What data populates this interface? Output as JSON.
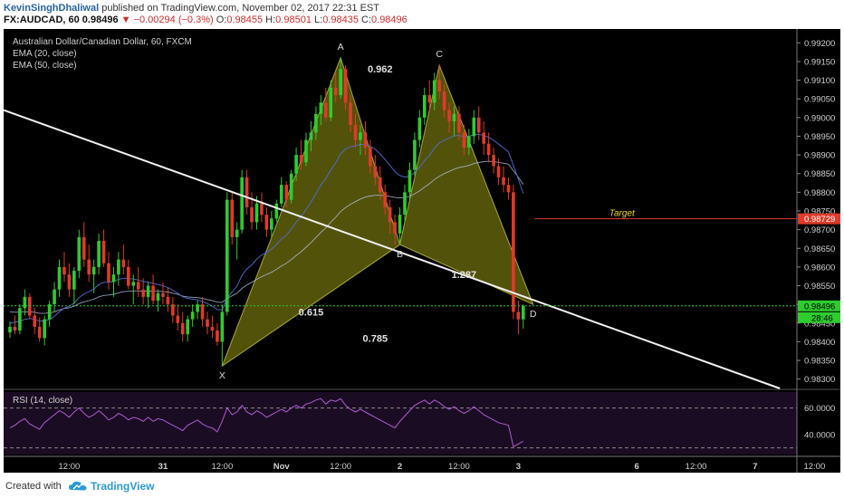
{
  "header": {
    "author": "KevinSinghDhaliwal",
    "published_text": "published on TradingView.com, November 02, 2017 22:31 EST",
    "symbol": "FX:AUDCAD, 60",
    "last": "0.98496",
    "down_arrow": "▼",
    "change": "−0.00294 (−0.3%)",
    "o_label": "O:",
    "o": "0.98455",
    "h_label": "H:",
    "h": "0.98501",
    "l_label": "L:",
    "l": "0.98435",
    "c_label": "C:",
    "c": "0.98496"
  },
  "legend": {
    "title": "Australian Dollar/Canadian Dollar, 60, FXCM",
    "ema20": "EMA (20, close)",
    "ema50": "EMA (50, close)"
  },
  "rsi_label": "RSI (14, close)",
  "footer": {
    "created_with": "Created with",
    "brand": "TradingView"
  },
  "chart_data": {
    "type": "candlestick",
    "price_axis": [
      "0.99200",
      "0.99150",
      "0.99100",
      "0.99050",
      "0.99000",
      "0.98950",
      "0.98900",
      "0.98850",
      "0.98800",
      "0.98750",
      "0.98700",
      "0.98650",
      "0.98600",
      "0.98550",
      "0.98500",
      "0.98450",
      "0.98400",
      "0.98350",
      "0.98300"
    ],
    "ylim": [
      0.98275,
      0.99225
    ],
    "rsi_axis": [
      "60.0000",
      "40.0000"
    ],
    "rsi_ylim": [
      25,
      72
    ],
    "time_axis": [
      {
        "label": "12:00",
        "x": 12
      },
      {
        "label": "31",
        "x": 31
      },
      {
        "label": "12:00",
        "x": 43
      },
      {
        "label": "Nov",
        "x": 55
      },
      {
        "label": "12:00",
        "x": 67
      },
      {
        "label": "2",
        "x": 79
      },
      {
        "label": "12:00",
        "x": 91
      },
      {
        "label": "3",
        "x": 103
      },
      {
        "label": "6",
        "x": 127
      },
      {
        "label": "12:00",
        "x": 139
      },
      {
        "label": "7",
        "x": 151
      },
      {
        "label": "12:00",
        "x": 163
      }
    ],
    "last_price": "0.98496",
    "countdown": "28:46",
    "target_price": "0.98729",
    "target_label": "Target",
    "pattern_points": [
      {
        "label": "X",
        "x": 43,
        "price": 0.98335
      },
      {
        "label": "A",
        "x": 67,
        "price": 0.9916
      },
      {
        "label": "B",
        "x": 79,
        "price": 0.9866
      },
      {
        "label": "C",
        "x": 87,
        "price": 0.9914
      },
      {
        "label": "D",
        "x": 106,
        "price": 0.985
      }
    ],
    "ratios": [
      {
        "text": "0.962",
        "x": 75,
        "price": 0.9913
      },
      {
        "text": "1.287",
        "x": 92,
        "price": 0.9858
      },
      {
        "text": "0.615",
        "x": 61,
        "price": 0.9848
      },
      {
        "text": "0.785",
        "x": 74,
        "price": 0.9841
      }
    ],
    "trendline": [
      {
        "x": 0,
        "price": 0.9902
      },
      {
        "x": 156,
        "price": 0.98275
      }
    ],
    "candles": [
      [
        0.98425,
        0.98455,
        0.9841,
        0.9844
      ],
      [
        0.9844,
        0.9847,
        0.9842,
        0.9843
      ],
      [
        0.9843,
        0.985,
        0.9842,
        0.9849
      ],
      [
        0.9849,
        0.9854,
        0.9847,
        0.9852
      ],
      [
        0.9852,
        0.9853,
        0.9846,
        0.9847
      ],
      [
        0.9847,
        0.9849,
        0.9842,
        0.9844
      ],
      [
        0.9844,
        0.98465,
        0.984,
        0.9841
      ],
      [
        0.9841,
        0.9847,
        0.9839,
        0.9846
      ],
      [
        0.9846,
        0.9851,
        0.9844,
        0.985
      ],
      [
        0.985,
        0.9856,
        0.9848,
        0.9854
      ],
      [
        0.9854,
        0.9862,
        0.9852,
        0.986
      ],
      [
        0.986,
        0.9864,
        0.9856,
        0.9858
      ],
      [
        0.9858,
        0.9861,
        0.9852,
        0.9854
      ],
      [
        0.9854,
        0.986,
        0.985,
        0.9859
      ],
      [
        0.9859,
        0.987,
        0.9857,
        0.9868
      ],
      [
        0.9868,
        0.9872,
        0.986,
        0.9862
      ],
      [
        0.9862,
        0.9866,
        0.9856,
        0.9858
      ],
      [
        0.9858,
        0.9862,
        0.9853,
        0.986
      ],
      [
        0.986,
        0.9869,
        0.9858,
        0.9867
      ],
      [
        0.9867,
        0.987,
        0.986,
        0.9861
      ],
      [
        0.9861,
        0.9864,
        0.9854,
        0.9856
      ],
      [
        0.9856,
        0.986,
        0.9852,
        0.9858
      ],
      [
        0.9858,
        0.9864,
        0.9855,
        0.9862
      ],
      [
        0.9862,
        0.9866,
        0.9858,
        0.986
      ],
      [
        0.986,
        0.9862,
        0.9854,
        0.9855
      ],
      [
        0.9855,
        0.9858,
        0.985,
        0.9856
      ],
      [
        0.9856,
        0.986,
        0.9852,
        0.9854
      ],
      [
        0.9854,
        0.9857,
        0.985,
        0.9852
      ],
      [
        0.9852,
        0.9856,
        0.9849,
        0.9855
      ],
      [
        0.9855,
        0.9858,
        0.985,
        0.9851
      ],
      [
        0.9851,
        0.9854,
        0.9848,
        0.9853
      ],
      [
        0.9853,
        0.9856,
        0.985,
        0.9852
      ],
      [
        0.9852,
        0.98545,
        0.9848,
        0.985
      ],
      [
        0.985,
        0.9852,
        0.9845,
        0.9847
      ],
      [
        0.9847,
        0.985,
        0.9843,
        0.9845
      ],
      [
        0.9845,
        0.9848,
        0.984,
        0.9842
      ],
      [
        0.9842,
        0.9847,
        0.984,
        0.9846
      ],
      [
        0.9846,
        0.985,
        0.9844,
        0.9848
      ],
      [
        0.9848,
        0.9851,
        0.9846,
        0.985
      ],
      [
        0.985,
        0.9852,
        0.9844,
        0.9846
      ],
      [
        0.9846,
        0.9848,
        0.9842,
        0.9844
      ],
      [
        0.9844,
        0.9847,
        0.9841,
        0.9843
      ],
      [
        0.9843,
        0.9845,
        0.9839,
        0.984
      ],
      [
        0.984,
        0.985,
        0.98335,
        0.9848
      ],
      [
        0.9848,
        0.988,
        0.9847,
        0.9878
      ],
      [
        0.9878,
        0.988,
        0.9866,
        0.9868
      ],
      [
        0.9868,
        0.9872,
        0.9862,
        0.987
      ],
      [
        0.987,
        0.9886,
        0.9869,
        0.9884
      ],
      [
        0.9884,
        0.9886,
        0.9874,
        0.9876
      ],
      [
        0.9876,
        0.988,
        0.987,
        0.9872
      ],
      [
        0.9872,
        0.9879,
        0.987,
        0.9877
      ],
      [
        0.9877,
        0.988,
        0.9872,
        0.9874
      ],
      [
        0.9874,
        0.9876,
        0.9868,
        0.987
      ],
      [
        0.987,
        0.9875,
        0.9868,
        0.9873
      ],
      [
        0.9873,
        0.9878,
        0.9872,
        0.9877
      ],
      [
        0.9877,
        0.9884,
        0.9876,
        0.9882
      ],
      [
        0.9882,
        0.9883,
        0.9876,
        0.9878
      ],
      [
        0.9878,
        0.9886,
        0.9877,
        0.9885
      ],
      [
        0.9885,
        0.9892,
        0.9883,
        0.989
      ],
      [
        0.989,
        0.9894,
        0.9886,
        0.9888
      ],
      [
        0.9888,
        0.9896,
        0.9887,
        0.9894
      ],
      [
        0.9894,
        0.9899,
        0.9891,
        0.9896
      ],
      [
        0.9896,
        0.9903,
        0.9894,
        0.9901
      ],
      [
        0.9901,
        0.9906,
        0.9898,
        0.9904
      ],
      [
        0.9904,
        0.9908,
        0.9899,
        0.99
      ],
      [
        0.99,
        0.991,
        0.9899,
        0.9908
      ],
      [
        0.9908,
        0.9912,
        0.9904,
        0.9906
      ],
      [
        0.9906,
        0.9916,
        0.9905,
        0.9913
      ],
      [
        0.9913,
        0.9914,
        0.9902,
        0.9904
      ],
      [
        0.9904,
        0.9906,
        0.9896,
        0.9898
      ],
      [
        0.9898,
        0.9901,
        0.9892,
        0.9894
      ],
      [
        0.9894,
        0.9898,
        0.989,
        0.9896
      ],
      [
        0.9896,
        0.9899,
        0.989,
        0.9892
      ],
      [
        0.9892,
        0.9894,
        0.9885,
        0.9887
      ],
      [
        0.9887,
        0.989,
        0.9882,
        0.9884
      ],
      [
        0.9884,
        0.9887,
        0.9878,
        0.988
      ],
      [
        0.988,
        0.9882,
        0.9874,
        0.9876
      ],
      [
        0.9876,
        0.9878,
        0.9869,
        0.9872
      ],
      [
        0.9872,
        0.9874,
        0.9866,
        0.9869
      ],
      [
        0.9869,
        0.9876,
        0.9866,
        0.9874
      ],
      [
        0.9874,
        0.9882,
        0.9872,
        0.988
      ],
      [
        0.988,
        0.9888,
        0.9878,
        0.9886
      ],
      [
        0.9886,
        0.9896,
        0.9884,
        0.9894
      ],
      [
        0.9894,
        0.9902,
        0.9892,
        0.99
      ],
      [
        0.99,
        0.9908,
        0.9898,
        0.9906
      ],
      [
        0.9906,
        0.991,
        0.9902,
        0.9904
      ],
      [
        0.9904,
        0.9912,
        0.9902,
        0.991
      ],
      [
        0.991,
        0.9914,
        0.9905,
        0.9907
      ],
      [
        0.9907,
        0.9909,
        0.99,
        0.9902
      ],
      [
        0.9902,
        0.9904,
        0.9896,
        0.9899
      ],
      [
        0.9899,
        0.9903,
        0.9895,
        0.9901
      ],
      [
        0.9901,
        0.9903,
        0.9894,
        0.9896
      ],
      [
        0.9896,
        0.9898,
        0.989,
        0.9892
      ],
      [
        0.9892,
        0.9897,
        0.989,
        0.9895
      ],
      [
        0.9895,
        0.9902,
        0.9893,
        0.99
      ],
      [
        0.99,
        0.9903,
        0.9894,
        0.9896
      ],
      [
        0.9896,
        0.9899,
        0.989,
        0.9893
      ],
      [
        0.9893,
        0.9896,
        0.9888,
        0.989
      ],
      [
        0.989,
        0.9892,
        0.9885,
        0.9887
      ],
      [
        0.9887,
        0.9889,
        0.9882,
        0.9884
      ],
      [
        0.9884,
        0.9887,
        0.988,
        0.9882
      ],
      [
        0.9882,
        0.9884,
        0.9878,
        0.988
      ],
      [
        0.988,
        0.9882,
        0.9846,
        0.9848
      ],
      [
        0.9848,
        0.9851,
        0.9842,
        0.9846
      ],
      [
        0.9846,
        0.985,
        0.98435,
        0.98496
      ]
    ],
    "rsi": [
      45,
      47,
      50,
      52,
      48,
      46,
      44,
      49,
      52,
      55,
      58,
      56,
      53,
      57,
      60,
      56,
      53,
      55,
      58,
      55,
      51,
      53,
      56,
      54,
      51,
      53,
      52,
      50,
      53,
      50,
      52,
      51,
      49,
      47,
      45,
      43,
      47,
      49,
      51,
      48,
      46,
      45,
      42,
      50,
      60,
      55,
      57,
      62,
      57,
      55,
      58,
      56,
      53,
      55,
      57,
      59,
      57,
      60,
      62,
      60,
      63,
      64,
      66,
      67,
      63,
      66,
      65,
      67,
      62,
      59,
      57,
      59,
      57,
      55,
      53,
      51,
      49,
      47,
      45,
      50,
      54,
      58,
      62,
      64,
      66,
      63,
      66,
      64,
      61,
      59,
      61,
      58,
      56,
      58,
      61,
      58,
      55,
      53,
      51,
      49,
      48,
      47,
      31,
      33,
      35
    ],
    "ema20": [
      0.9845,
      0.98452,
      0.98455,
      0.9846,
      0.98462,
      0.9846,
      0.98455,
      0.98456,
      0.9846,
      0.98468,
      0.9848,
      0.9849,
      0.98495,
      0.98503,
      0.98518,
      0.98528,
      0.98534,
      0.98541,
      0.98553,
      0.98559,
      0.98559,
      0.98561,
      0.98567,
      0.9857,
      0.98569,
      0.98568,
      0.98565,
      0.98561,
      0.9856,
      0.98556,
      0.98553,
      0.9855,
      0.98545,
      0.98538,
      0.9853,
      0.9852,
      0.98516,
      0.98514,
      0.98512,
      0.98508,
      0.98502,
      0.98495,
      0.98486,
      0.98485,
      0.98517,
      0.98533,
      0.98549,
      0.98578,
      0.98595,
      0.98606,
      0.98621,
      0.98632,
      0.98639,
      0.98648,
      0.9866,
      0.98675,
      0.98685,
      0.98701,
      0.9872,
      0.98735,
      0.98754,
      0.98774,
      0.98796,
      0.9882,
      0.98837,
      0.9886,
      0.98879,
      0.98903,
      0.98916,
      0.98922,
      0.98924,
      0.98928,
      0.98928,
      0.98923,
      0.98915,
      0.98903,
      0.98888,
      0.98872,
      0.98855,
      0.98845,
      0.98841,
      0.98843,
      0.98853,
      0.98867,
      0.98885,
      0.98899,
      0.98918,
      0.98932,
      0.9894,
      0.98945,
      0.98951,
      0.98952,
      0.98949,
      0.9895,
      0.98955,
      0.98955,
      0.98952,
      0.98947,
      0.98939,
      0.98929,
      0.98919,
      0.98908,
      0.98872,
      0.98835,
      0.98797
    ],
    "ema50": [
      0.9848,
      0.98479,
      0.98479,
      0.9848,
      0.9848,
      0.98479,
      0.98476,
      0.98476,
      0.98477,
      0.9848,
      0.98485,
      0.98489,
      0.98491,
      0.98495,
      0.98502,
      0.98507,
      0.9851,
      0.98514,
      0.9852,
      0.98524,
      0.98525,
      0.98527,
      0.98531,
      0.98534,
      0.98535,
      0.98536,
      0.98536,
      0.98535,
      0.98536,
      0.98535,
      0.98535,
      0.98534,
      0.98533,
      0.9853,
      0.98527,
      0.98522,
      0.9852,
      0.98519,
      0.98518,
      0.98516,
      0.98513,
      0.9851,
      0.98506,
      0.98505,
      0.98516,
      0.98523,
      0.9853,
      0.98543,
      0.98552,
      0.98559,
      0.98567,
      0.98574,
      0.9858,
      0.98586,
      0.98594,
      0.98603,
      0.9861,
      0.9862,
      0.98631,
      0.98641,
      0.98653,
      0.98665,
      0.98679,
      0.98693,
      0.98705,
      0.9872,
      0.98733,
      0.98749,
      0.98759,
      0.98768,
      0.98775,
      0.98782,
      0.98787,
      0.9879,
      0.98792,
      0.98792,
      0.98791,
      0.98789,
      0.98786,
      0.98785,
      0.98786,
      0.98789,
      0.98796,
      0.98804,
      0.98814,
      0.98823,
      0.98834,
      0.98843,
      0.9885,
      0.98856,
      0.98862,
      0.98866,
      0.98869,
      0.98872,
      0.98877,
      0.9888,
      0.98882,
      0.98883,
      0.98882,
      0.9888,
      0.98878,
      0.98875,
      0.98858,
      0.9884,
      0.98821
    ]
  }
}
